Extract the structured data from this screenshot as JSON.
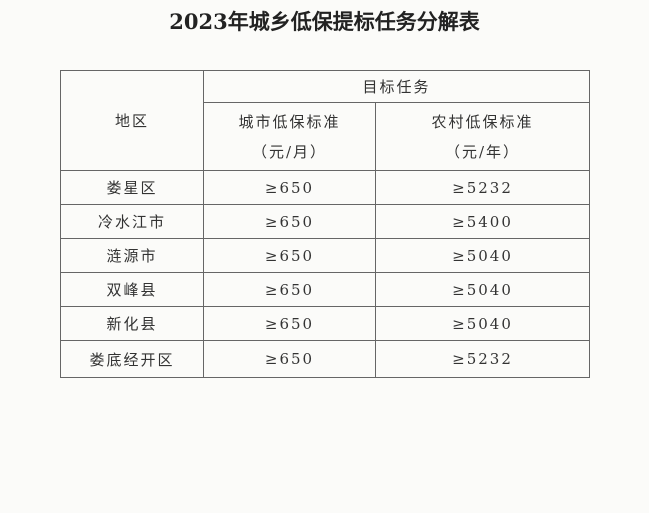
{
  "title": "2023年城乡低保提标任务分解表",
  "table": {
    "region_header": "地区",
    "group_header": "目标任务",
    "urban_header": "城市低保标准",
    "urban_unit": "（元/月）",
    "rural_header": "农村低保标准",
    "rural_unit": "（元/年）",
    "rows": [
      {
        "region": "娄星区",
        "urban": "≥650",
        "rural": "≥5232"
      },
      {
        "region": "冷水江市",
        "urban": "≥650",
        "rural": "≥5400"
      },
      {
        "region": "涟源市",
        "urban": "≥650",
        "rural": "≥5040"
      },
      {
        "region": "双峰县",
        "urban": "≥650",
        "rural": "≥5040"
      },
      {
        "region": "新化县",
        "urban": "≥650",
        "rural": "≥5040"
      },
      {
        "region": "娄底经开区",
        "urban": "≥650",
        "rural": "≥5232"
      }
    ]
  }
}
